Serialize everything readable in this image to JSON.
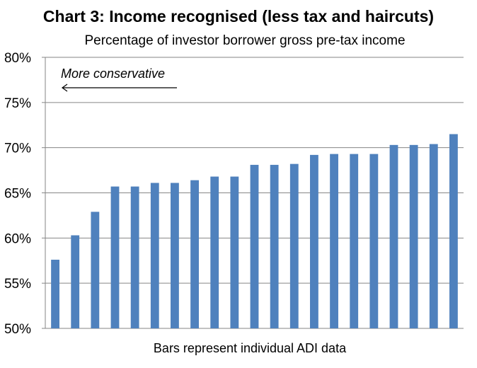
{
  "chart_data": {
    "type": "bar",
    "title": "Chart 3: Income recognised (less tax and haircuts)",
    "subtitle": "Percentage of investor borrower gross pre-tax income",
    "xlabel": "Bars represent individual ADI data",
    "ylabel": "",
    "ylim": [
      50,
      80
    ],
    "yticks": [
      50,
      55,
      60,
      65,
      70,
      75,
      80
    ],
    "ytick_labels": [
      "50%",
      "55%",
      "60%",
      "65%",
      "70%",
      "75%",
      "80%"
    ],
    "grid": true,
    "bar_color": "#4f81bd",
    "values": [
      57.6,
      60.3,
      62.9,
      65.7,
      65.7,
      66.1,
      66.1,
      66.4,
      66.8,
      66.8,
      68.1,
      68.1,
      68.2,
      69.2,
      69.3,
      69.3,
      69.3,
      70.3,
      70.3,
      70.4,
      71.5
    ],
    "annotation": {
      "text": "More conservative",
      "arrow": "left-pointing-arrow"
    }
  }
}
